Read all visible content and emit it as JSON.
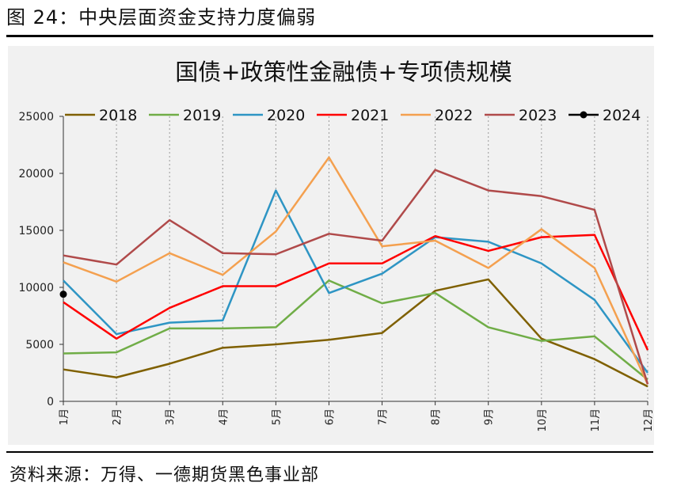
{
  "figure": {
    "title": "图 24：中央层面资金支持力度偏弱",
    "source": "资料来源：万得、一德期货黑色事业部"
  },
  "chart_data": {
    "type": "line",
    "title": "国债+政策性金融债+专项债规模",
    "xlabel": "",
    "ylabel": "",
    "categories": [
      "1月",
      "2月",
      "3月",
      "4月",
      "5月",
      "6月",
      "7月",
      "8月",
      "9月",
      "10月",
      "11月",
      "12月"
    ],
    "ylim": [
      0,
      25000
    ],
    "yticks": [
      0,
      5000,
      10000,
      15000,
      20000,
      25000
    ],
    "grid": "vertical-dashed",
    "legend_position": "top",
    "series": [
      {
        "name": "2018",
        "color": "#7f6000",
        "values": [
          2800,
          2100,
          3300,
          4700,
          5000,
          5400,
          6000,
          9700,
          10700,
          5500,
          3700,
          1300
        ]
      },
      {
        "name": "2019",
        "color": "#70ad47",
        "values": [
          4200,
          4300,
          6400,
          6400,
          6500,
          10600,
          8600,
          9500,
          6500,
          5300,
          5700,
          1900
        ]
      },
      {
        "name": "2020",
        "color": "#2e95c4",
        "values": [
          10600,
          5900,
          6900,
          7100,
          18500,
          9500,
          11200,
          14400,
          14000,
          12100,
          8900,
          2500
        ]
      },
      {
        "name": "2021",
        "color": "#ff0000",
        "values": [
          8700,
          5500,
          8200,
          10100,
          10100,
          12100,
          12100,
          14500,
          13200,
          14400,
          14600,
          4500
        ]
      },
      {
        "name": "2022",
        "color": "#f4a04f",
        "values": [
          12200,
          10500,
          13000,
          11100,
          14900,
          21400,
          13600,
          14100,
          11700,
          15100,
          11700,
          1500
        ]
      },
      {
        "name": "2023",
        "color": "#b04a4a",
        "values": [
          12800,
          12000,
          15900,
          13000,
          12900,
          14700,
          14100,
          20300,
          18500,
          18000,
          16800,
          1500
        ]
      },
      {
        "name": "2024",
        "color": "#000000",
        "marker": "circle",
        "values": [
          9400,
          null,
          null,
          null,
          null,
          null,
          null,
          null,
          null,
          null,
          null,
          null
        ]
      }
    ]
  }
}
